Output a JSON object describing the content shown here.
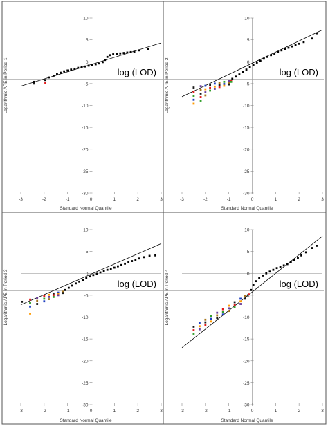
{
  "colors": {
    "frame": "#555555",
    "axis": "#888888",
    "line": "#000000",
    "threshold": "#999999",
    "points_main": "#000000",
    "points_censored": [
      "#1a1a1a",
      "#e31a1c",
      "#33a02c",
      "#1f3fbf",
      "#ff9900",
      "#6a3d9a",
      "#a6761d"
    ]
  },
  "chart_data": [
    {
      "type": "scatter",
      "xlabel": "Standard Normal Quantile",
      "ylabel": "Logarithmic APE in Period 1",
      "annotation": "log (LOD)",
      "xlim": [
        -3,
        3
      ],
      "ylim": [
        -30,
        10
      ],
      "xticks": [
        "-3",
        "-2",
        "-1",
        "0",
        "1",
        "2",
        "3"
      ],
      "yticks": [
        "10",
        "5",
        "0",
        "-5",
        "-10",
        "-15",
        "-20",
        "-25",
        "-30"
      ],
      "lod": -4,
      "fit_line": {
        "x": [
          -3,
          3
        ],
        "y": [
          -5.6,
          4.3
        ]
      },
      "points": {
        "x": [
          -2.45,
          -1.95,
          -1.8,
          -1.6,
          -1.45,
          -1.3,
          -1.15,
          -1.0,
          -0.85,
          -0.7,
          -0.55,
          -0.4,
          -0.25,
          -0.1,
          0.05,
          0.2,
          0.35,
          0.5,
          0.6,
          0.7,
          0.8,
          0.95,
          1.1,
          1.25,
          1.4,
          1.55,
          1.7,
          1.85,
          2.05,
          2.45
        ],
        "y": [
          -4.6,
          -4.2,
          -3.6,
          -3.2,
          -2.8,
          -2.5,
          -2.2,
          -2.0,
          -1.8,
          -1.6,
          -1.4,
          -1.2,
          -1.1,
          -0.9,
          -0.8,
          -0.6,
          -0.4,
          -0.1,
          0.4,
          1.1,
          1.5,
          1.7,
          1.8,
          1.9,
          2.0,
          2.1,
          2.2,
          2.3,
          2.6,
          2.9
        ]
      },
      "censored_points": {
        "x": [
          -2.45,
          -1.95
        ],
        "y": [
          -5.0,
          -4.8
        ]
      }
    },
    {
      "type": "scatter",
      "xlabel": "Standard Normal Quantile",
      "ylabel": "Logarithmic APE in Period 2",
      "annotation": "log (LOD)",
      "xlim": [
        -3,
        3
      ],
      "ylim": [
        -30,
        10
      ],
      "xticks": [
        "-3",
        "-2",
        "-1",
        "0",
        "1",
        "2",
        "3"
      ],
      "yticks": [
        "10",
        "5",
        "0",
        "-5",
        "-10",
        "-15",
        "-20",
        "-25",
        "-30"
      ],
      "lod": -4,
      "fit_line": {
        "x": [
          -3,
          3
        ],
        "y": [
          -8.0,
          7.3
        ]
      },
      "points": {
        "x": [
          -0.85,
          -0.7,
          -0.55,
          -0.4,
          -0.25,
          -0.1,
          0.05,
          0.2,
          0.35,
          0.5,
          0.65,
          0.8,
          0.95,
          1.1,
          1.25,
          1.4,
          1.55,
          1.7,
          1.85,
          2.0,
          2.2,
          2.55,
          2.75
        ],
        "y": [
          -3.9,
          -3.4,
          -2.9,
          -2.3,
          -1.8,
          -1.2,
          -0.7,
          -0.2,
          0.2,
          0.7,
          1.1,
          1.5,
          1.8,
          2.2,
          2.6,
          2.9,
          3.2,
          3.5,
          3.8,
          4.1,
          4.5,
          5.3,
          6.5
        ]
      },
      "censored_points": {
        "x": [
          -2.5,
          -2.5,
          -2.5,
          -2.5,
          -2.5,
          -2.2,
          -2.2,
          -2.2,
          -2.2,
          -2.2,
          -2.0,
          -2.0,
          -2.0,
          -2.0,
          -1.8,
          -1.8,
          -1.8,
          -1.6,
          -1.6,
          -1.6,
          -1.4,
          -1.4,
          -1.4,
          -1.2,
          -1.2,
          -1.2,
          -1.0,
          -1.0,
          -1.0,
          -0.9,
          -0.9
        ],
        "y": [
          -5.9,
          -6.9,
          -7.8,
          -8.7,
          -9.6,
          -5.6,
          -6.5,
          -7.3,
          -8.1,
          -8.9,
          -5.5,
          -6.3,
          -7.0,
          -7.7,
          -5.3,
          -6.0,
          -6.6,
          -5.0,
          -5.7,
          -6.2,
          -4.8,
          -5.3,
          -5.8,
          -4.6,
          -5.1,
          -5.5,
          -4.4,
          -4.8,
          -5.2,
          -4.3,
          -4.6
        ]
      }
    },
    {
      "type": "scatter",
      "xlabel": "Standard Normal Quantile",
      "ylabel": "Logarithmic APE in Period 3",
      "annotation": "log (LOD)",
      "xlim": [
        -3,
        3
      ],
      "ylim": [
        -30,
        10
      ],
      "xticks": [
        "-3",
        "-2",
        "-1",
        "0",
        "1",
        "2",
        "3"
      ],
      "yticks": [
        "10",
        "5",
        "0",
        "-5",
        "-10",
        "-15",
        "-20",
        "-25",
        "-30"
      ],
      "lod": -4,
      "fit_line": {
        "x": [
          -3,
          3
        ],
        "y": [
          -7.2,
          6.8
        ]
      },
      "points": {
        "x": [
          -1.1,
          -0.95,
          -0.8,
          -0.65,
          -0.5,
          -0.35,
          -0.2,
          -0.05,
          0.1,
          0.25,
          0.4,
          0.55,
          0.7,
          0.85,
          1.0,
          1.15,
          1.3,
          1.45,
          1.6,
          1.75,
          1.9,
          2.05,
          2.25,
          2.5,
          2.75
        ],
        "y": [
          -3.8,
          -3.3,
          -2.8,
          -2.3,
          -1.9,
          -1.5,
          -1.1,
          -0.7,
          -0.4,
          -0.1,
          0.2,
          0.5,
          0.8,
          1.0,
          1.3,
          1.6,
          1.9,
          2.2,
          2.5,
          2.8,
          3.1,
          3.4,
          3.7,
          4.0,
          4.1
        ]
      },
      "censored_points": {
        "x": [
          -2.95,
          -2.6,
          -2.6,
          -2.6,
          -2.6,
          -2.3,
          -2.3,
          -2.3,
          -2.0,
          -2.0,
          -2.0,
          -1.8,
          -1.8,
          -1.8,
          -1.6,
          -1.6,
          -1.6,
          -1.4,
          -1.4,
          -1.4,
          -1.2,
          -1.2
        ],
        "y": [
          -6.5,
          -6.0,
          -6.8,
          -7.6,
          -9.2,
          -5.6,
          -6.3,
          -7.0,
          -5.2,
          -5.8,
          -6.4,
          -4.9,
          -5.4,
          -5.9,
          -4.6,
          -5.0,
          -5.4,
          -4.4,
          -4.7,
          -5.0,
          -4.2,
          -4.5
        ]
      }
    },
    {
      "type": "scatter",
      "xlabel": "Standard Normal Quantile",
      "ylabel": "Logarithmic APE in Period 4",
      "annotation": "log (LOD)",
      "xlim": [
        -3,
        3
      ],
      "ylim": [
        -30,
        10
      ],
      "xticks": [
        "-3",
        "-2",
        "-1",
        "0",
        "1",
        "2",
        "3"
      ],
      "yticks": [
        "10",
        "5",
        "0",
        "-5",
        "-10",
        "-15",
        "-20",
        "-25",
        "-30"
      ],
      "lod": -4,
      "fit_line": {
        "x": [
          -3,
          3
        ],
        "y": [
          -17.0,
          8.5
        ]
      },
      "points": {
        "x": [
          -0.05,
          0.05,
          0.15,
          0.3,
          0.45,
          0.6,
          0.75,
          0.9,
          1.05,
          1.2,
          1.35,
          1.5,
          1.65,
          1.8,
          1.95,
          2.1,
          2.3,
          2.55,
          2.75
        ],
        "y": [
          -3.8,
          -2.6,
          -1.8,
          -1.1,
          -0.5,
          0.0,
          0.4,
          0.8,
          1.2,
          1.5,
          1.8,
          2.1,
          2.5,
          3.0,
          3.5,
          4.1,
          4.8,
          5.8,
          6.3
        ]
      },
      "censored_points": {
        "x": [
          -2.5,
          -2.5,
          -2.5,
          -2.25,
          -2.25,
          -2.25,
          -2.0,
          -2.0,
          -2.0,
          -1.75,
          -1.75,
          -1.75,
          -1.5,
          -1.5,
          -1.5,
          -1.25,
          -1.25,
          -1.25,
          -1.0,
          -1.0,
          -1.0,
          -0.75,
          -0.75,
          -0.75,
          -0.5,
          -0.5,
          -0.5,
          -0.3,
          -0.3,
          -0.15
        ],
        "y": [
          -12.2,
          -13.0,
          -13.8,
          -11.4,
          -12.1,
          -12.8,
          -10.6,
          -11.2,
          -11.8,
          -9.8,
          -10.4,
          -11.0,
          -9.0,
          -9.6,
          -10.2,
          -8.2,
          -8.8,
          -9.4,
          -7.4,
          -8.0,
          -8.6,
          -6.6,
          -7.2,
          -7.8,
          -5.8,
          -6.4,
          -7.0,
          -5.2,
          -5.8,
          -4.8
        ]
      }
    }
  ]
}
